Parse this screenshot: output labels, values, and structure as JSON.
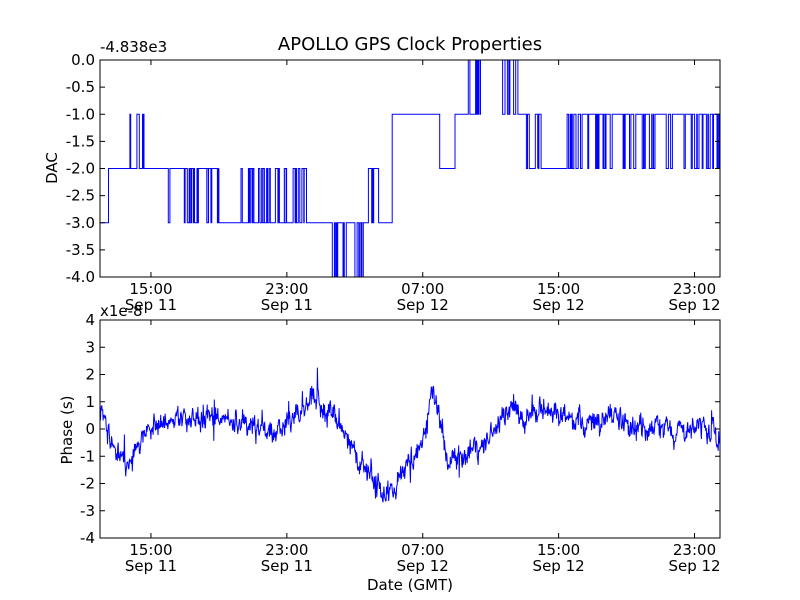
{
  "title": "APOLLO GPS Clock Properties",
  "xlabel": "Date (GMT)",
  "line_color": "#0000ff",
  "chart_data": [
    {
      "type": "line",
      "name": "dac-panel",
      "ylabel": "DAC",
      "offset_label": "-4.838e3",
      "ylim": [
        -4.0,
        0.0
      ],
      "yticks": [
        {
          "value": -4.0,
          "label": "-4.0"
        },
        {
          "value": -3.5,
          "label": "-3.5"
        },
        {
          "value": -3.0,
          "label": "-3.0"
        },
        {
          "value": -2.5,
          "label": "-2.5"
        },
        {
          "value": -2.0,
          "label": "-2.0"
        },
        {
          "value": -1.5,
          "label": "-1.5"
        },
        {
          "value": -1.0,
          "label": "-1.0"
        },
        {
          "value": -0.5,
          "label": "-0.5"
        },
        {
          "value": 0.0,
          "label": "0.0"
        }
      ],
      "xlim_hours": [
        12.0,
        48.5
      ],
      "xticks": [
        {
          "hour": 15,
          "time": "15:00",
          "date": "Sep 11"
        },
        {
          "hour": 23,
          "time": "23:00",
          "date": "Sep 11"
        },
        {
          "hour": 31,
          "time": "07:00",
          "date": "Sep 12"
        },
        {
          "hour": 39,
          "time": "15:00",
          "date": "Sep 12"
        },
        {
          "hour": 47,
          "time": "23:00",
          "date": "Sep 12"
        }
      ],
      "segments": [
        {
          "t": [
            12.0,
            12.5
          ],
          "level": -3,
          "alt": -3
        },
        {
          "t": [
            12.5,
            13.5
          ],
          "level": -2,
          "alt": -2
        },
        {
          "t": [
            13.5,
            14.6
          ],
          "level": -2,
          "alt": -1
        },
        {
          "t": [
            14.6,
            15.8
          ],
          "level": -2,
          "alt": -2
        },
        {
          "t": [
            15.8,
            19.0
          ],
          "level": -2,
          "alt": -3
        },
        {
          "t": [
            19.0,
            20.1
          ],
          "level": -3,
          "alt": -3
        },
        {
          "t": [
            20.1,
            22.5
          ],
          "level": -3,
          "alt": -2
        },
        {
          "t": [
            22.5,
            24.5
          ],
          "level": -3,
          "alt": -2
        },
        {
          "t": [
            24.5,
            25.2
          ],
          "level": -3,
          "alt": -3
        },
        {
          "t": [
            25.2,
            27.5
          ],
          "level": -3,
          "alt": -4
        },
        {
          "t": [
            27.5,
            27.8
          ],
          "level": -3,
          "alt": -3
        },
        {
          "t": [
            27.8,
            28.4
          ],
          "level": -2,
          "alt": -3
        },
        {
          "t": [
            28.4,
            29.2
          ],
          "level": -3,
          "alt": -3
        },
        {
          "t": [
            29.2,
            32.0
          ],
          "level": -1,
          "alt": -1
        },
        {
          "t": [
            32.0,
            32.9
          ],
          "level": -2,
          "alt": -2
        },
        {
          "t": [
            32.9,
            33.5
          ],
          "level": -1,
          "alt": -1
        },
        {
          "t": [
            33.5,
            34.4
          ],
          "level": -1,
          "alt": 0
        },
        {
          "t": [
            34.4,
            35.6
          ],
          "level": 0,
          "alt": 0
        },
        {
          "t": [
            35.6,
            36.6
          ],
          "level": 0,
          "alt": -1
        },
        {
          "t": [
            36.6,
            37.1
          ],
          "level": -1,
          "alt": -1
        },
        {
          "t": [
            37.1,
            38.0
          ],
          "level": -2,
          "alt": -1
        },
        {
          "t": [
            38.0,
            39.5
          ],
          "level": -2,
          "alt": -2
        },
        {
          "t": [
            39.5,
            48.5
          ],
          "level": -1,
          "alt": -2
        }
      ]
    },
    {
      "type": "line",
      "name": "phase-panel",
      "ylabel": "Phase (s)",
      "offset_label": "x1e-8",
      "ylim": [
        -4,
        4
      ],
      "yticks": [
        {
          "value": -4,
          "label": "-4"
        },
        {
          "value": -3,
          "label": "-3"
        },
        {
          "value": -2,
          "label": "-2"
        },
        {
          "value": -1,
          "label": "-1"
        },
        {
          "value": 0,
          "label": "0"
        },
        {
          "value": 1,
          "label": "1"
        },
        {
          "value": 2,
          "label": "2"
        },
        {
          "value": 3,
          "label": "3"
        },
        {
          "value": 4,
          "label": "4"
        }
      ],
      "xlim_hours": [
        12.0,
        48.5
      ],
      "xticks": [
        {
          "hour": 15,
          "time": "15:00",
          "date": "Sep 11"
        },
        {
          "hour": 23,
          "time": "23:00",
          "date": "Sep 11"
        },
        {
          "hour": 31,
          "time": "07:00",
          "date": "Sep 12"
        },
        {
          "hour": 39,
          "time": "15:00",
          "date": "Sep 12"
        },
        {
          "hour": 47,
          "time": "23:00",
          "date": "Sep 12"
        }
      ],
      "trend": [
        {
          "hour": 12.0,
          "phase": 0.8
        },
        {
          "hour": 12.3,
          "phase": 0.3
        },
        {
          "hour": 13.0,
          "phase": -1.0
        },
        {
          "hour": 13.8,
          "phase": -1.3
        },
        {
          "hour": 14.5,
          "phase": -0.3
        },
        {
          "hour": 15.5,
          "phase": 0.2
        },
        {
          "hour": 17.0,
          "phase": 0.3
        },
        {
          "hour": 19.0,
          "phase": 0.4
        },
        {
          "hour": 20.5,
          "phase": 0.2
        },
        {
          "hour": 22.0,
          "phase": -0.2
        },
        {
          "hour": 23.5,
          "phase": 0.3
        },
        {
          "hour": 24.5,
          "phase": 1.2
        },
        {
          "hour": 25.5,
          "phase": 0.6
        },
        {
          "hour": 26.5,
          "phase": -0.3
        },
        {
          "hour": 27.5,
          "phase": -1.3
        },
        {
          "hour": 28.5,
          "phase": -2.3
        },
        {
          "hour": 29.3,
          "phase": -2.3
        },
        {
          "hour": 30.2,
          "phase": -1.2
        },
        {
          "hour": 31.0,
          "phase": -0.5
        },
        {
          "hour": 31.6,
          "phase": 1.4
        },
        {
          "hour": 32.0,
          "phase": 0.2
        },
        {
          "hour": 32.5,
          "phase": -1.3
        },
        {
          "hour": 33.5,
          "phase": -1.0
        },
        {
          "hour": 34.7,
          "phase": -0.4
        },
        {
          "hour": 35.5,
          "phase": 0.2
        },
        {
          "hour": 36.2,
          "phase": 0.9
        },
        {
          "hour": 37.0,
          "phase": 0.5
        },
        {
          "hour": 38.0,
          "phase": 0.8
        },
        {
          "hour": 39.0,
          "phase": 0.6
        },
        {
          "hour": 40.0,
          "phase": 0.3
        },
        {
          "hour": 41.0,
          "phase": 0.1
        },
        {
          "hour": 42.0,
          "phase": 0.4
        },
        {
          "hour": 43.0,
          "phase": 0.2
        },
        {
          "hour": 44.0,
          "phase": 0.0
        },
        {
          "hour": 45.0,
          "phase": 0.2
        },
        {
          "hour": 46.0,
          "phase": -0.1
        },
        {
          "hour": 47.0,
          "phase": 0.1
        },
        {
          "hour": 48.0,
          "phase": 0.0
        },
        {
          "hour": 48.5,
          "phase": -0.3
        }
      ],
      "noise_amplitude": 0.45
    }
  ]
}
